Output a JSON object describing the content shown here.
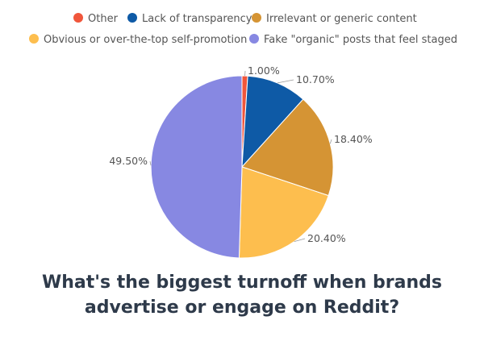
{
  "chart_data": {
    "type": "pie",
    "title_line1": "What's the biggest turnoff when brands",
    "title_line2": "advertise or engage on Reddit?",
    "legend_position": "top",
    "start_angle_deg": 0,
    "direction": "clockwise",
    "slices": [
      {
        "name": "Other",
        "value": 1.0,
        "label": "1.00%",
        "color": "#f0563b"
      },
      {
        "name": "Lack of transparency",
        "value": 10.7,
        "label": "10.70%",
        "color": "#0e5aa6"
      },
      {
        "name": "Irrelevant or generic content",
        "value": 18.4,
        "label": "18.40%",
        "color": "#d59434"
      },
      {
        "name": "Obvious or over-the-top self-promotion",
        "value": 20.4,
        "label": "20.40%",
        "color": "#fdbe4e"
      },
      {
        "name": "Fake \"organic\" posts that feel staged",
        "value": 49.5,
        "label": "49.50%",
        "color": "#8788e2"
      }
    ]
  }
}
